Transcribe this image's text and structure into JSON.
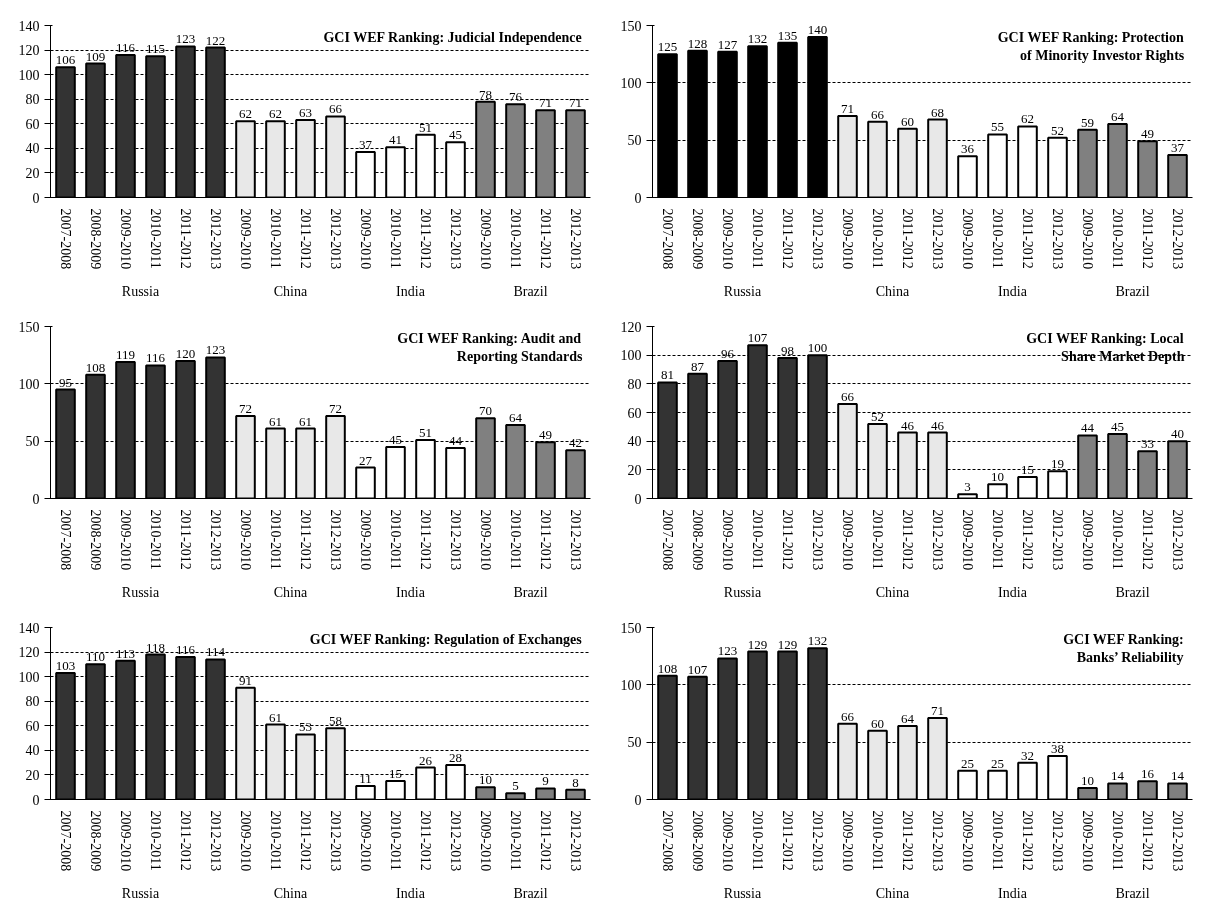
{
  "chart_data": [
    {
      "type": "bar",
      "title": "GCI WEF Ranking: Judicial Independence",
      "categories": [
        "2007-2008",
        "2008-2009",
        "2009-2010",
        "2010-2011",
        "2011-2012",
        "2012-2013",
        "2009-2010",
        "2010-2011",
        "2011-2012",
        "2012-2013",
        "2009-2010",
        "2010-2011",
        "2011-2012",
        "2012-2013",
        "2009-2010",
        "2010-2011",
        "2011-2012",
        "2012-2013"
      ],
      "series": [
        {
          "color": "#333333",
          "values": [
            106,
            109,
            116,
            115,
            123,
            122,
            null,
            null,
            null,
            null,
            null,
            null,
            null,
            null,
            null,
            null,
            null,
            null
          ]
        },
        {
          "color": "#e8e8e8",
          "values": [
            null,
            null,
            null,
            null,
            null,
            null,
            62,
            62,
            63,
            66,
            null,
            null,
            null,
            null,
            null,
            null,
            null,
            null
          ]
        },
        {
          "color": "#ffffff",
          "values": [
            null,
            null,
            null,
            null,
            null,
            null,
            null,
            null,
            null,
            null,
            37,
            41,
            51,
            45,
            null,
            null,
            null,
            null
          ]
        },
        {
          "color": "#808080",
          "values": [
            null,
            null,
            null,
            null,
            null,
            null,
            null,
            null,
            null,
            null,
            null,
            null,
            null,
            null,
            78,
            76,
            71,
            71
          ]
        }
      ],
      "ylim": [
        0,
        140
      ],
      "yticks": [
        0,
        20,
        40,
        60,
        80,
        100,
        120,
        140
      ],
      "grid": "y",
      "data_labels": true,
      "annotations": [
        "Russia",
        "China",
        "India",
        "Brazil"
      ]
    },
    {
      "type": "bar",
      "title": "GCI WEF Ranking: Protection\nof Minority Investor Rights",
      "categories": [
        "2007-2008",
        "2008-2009",
        "2009-2010",
        "2010-2011",
        "2011-2012",
        "2012-2013",
        "2009-2010",
        "2010-2011",
        "2011-2012",
        "2012-2013",
        "2009-2010",
        "2010-2011",
        "2011-2012",
        "2012-2013",
        "2009-2010",
        "2010-2011",
        "2011-2012",
        "2012-2013"
      ],
      "series": [
        {
          "color": "#000000",
          "values": [
            125,
            128,
            127,
            132,
            135,
            140,
            null,
            null,
            null,
            null,
            null,
            null,
            null,
            null,
            null,
            null,
            null,
            null
          ]
        },
        {
          "color": "#e8e8e8",
          "values": [
            null,
            null,
            null,
            null,
            null,
            null,
            71,
            66,
            60,
            68,
            null,
            null,
            null,
            null,
            null,
            null,
            null,
            null
          ]
        },
        {
          "color": "#ffffff",
          "values": [
            null,
            null,
            null,
            null,
            null,
            null,
            null,
            null,
            null,
            null,
            36,
            55,
            62,
            52,
            null,
            null,
            null,
            null
          ]
        },
        {
          "color": "#808080",
          "values": [
            null,
            null,
            null,
            null,
            null,
            null,
            null,
            null,
            null,
            null,
            null,
            null,
            null,
            null,
            59,
            64,
            49,
            37
          ]
        }
      ],
      "ylim": [
        0,
        150
      ],
      "yticks": [
        0,
        50,
        100,
        150
      ],
      "grid": "y",
      "data_labels": true,
      "annotations": [
        "Russia",
        "China",
        "India",
        "Brazil"
      ]
    },
    {
      "type": "bar",
      "title": "GCI WEF Ranking: Audit and\nReporting Standards",
      "categories": [
        "2007-2008",
        "2008-2009",
        "2009-2010",
        "2010-2011",
        "2011-2012",
        "2012-2013",
        "2009-2010",
        "2010-2011",
        "2011-2012",
        "2012-2013",
        "2009-2010",
        "2010-2011",
        "2011-2012",
        "2012-2013",
        "2009-2010",
        "2010-2011",
        "2011-2012",
        "2012-2013"
      ],
      "series": [
        {
          "color": "#333333",
          "values": [
            95,
            108,
            119,
            116,
            120,
            123,
            null,
            null,
            null,
            null,
            null,
            null,
            null,
            null,
            null,
            null,
            null,
            null
          ]
        },
        {
          "color": "#e8e8e8",
          "values": [
            null,
            null,
            null,
            null,
            null,
            null,
            72,
            61,
            61,
            72,
            null,
            null,
            null,
            null,
            null,
            null,
            null,
            null
          ]
        },
        {
          "color": "#ffffff",
          "values": [
            null,
            null,
            null,
            null,
            null,
            null,
            null,
            null,
            null,
            null,
            27,
            45,
            51,
            44,
            null,
            null,
            null,
            null
          ]
        },
        {
          "color": "#808080",
          "values": [
            null,
            null,
            null,
            null,
            null,
            null,
            null,
            null,
            null,
            null,
            null,
            null,
            null,
            null,
            70,
            64,
            49,
            42
          ]
        }
      ],
      "ylim": [
        0,
        150
      ],
      "yticks": [
        0,
        50,
        100,
        150
      ],
      "grid": "y",
      "data_labels": true,
      "annotations": [
        "Russia",
        "China",
        "India",
        "Brazil"
      ]
    },
    {
      "type": "bar",
      "title": "GCI WEF Ranking: Local\nShare Market Depth",
      "categories": [
        "2007-2008",
        "2008-2009",
        "2009-2010",
        "2010-2011",
        "2011-2012",
        "2012-2013",
        "2009-2010",
        "2010-2011",
        "2011-2012",
        "2012-2013",
        "2009-2010",
        "2010-2011",
        "2011-2012",
        "2012-2013",
        "2009-2010",
        "2010-2011",
        "2011-2012",
        "2012-2013"
      ],
      "series": [
        {
          "color": "#333333",
          "values": [
            81,
            87,
            96,
            107,
            98,
            100,
            null,
            null,
            null,
            null,
            null,
            null,
            null,
            null,
            null,
            null,
            null,
            null
          ]
        },
        {
          "color": "#e8e8e8",
          "values": [
            null,
            null,
            null,
            null,
            null,
            null,
            66,
            52,
            46,
            46,
            null,
            null,
            null,
            null,
            null,
            null,
            null,
            null
          ]
        },
        {
          "color": "#ffffff",
          "values": [
            null,
            null,
            null,
            null,
            null,
            null,
            null,
            null,
            null,
            null,
            3,
            10,
            15,
            19,
            null,
            null,
            null,
            null
          ]
        },
        {
          "color": "#808080",
          "values": [
            null,
            null,
            null,
            null,
            null,
            null,
            null,
            null,
            null,
            null,
            null,
            null,
            null,
            null,
            44,
            45,
            33,
            40
          ]
        }
      ],
      "ylim": [
        0,
        120
      ],
      "yticks": [
        0,
        20,
        40,
        60,
        80,
        100,
        120
      ],
      "grid": "y",
      "data_labels": true,
      "annotations": [
        "Russia",
        "China",
        "India",
        "Brazil"
      ]
    },
    {
      "type": "bar",
      "title": "GCI WEF Ranking: Regulation of Exchanges",
      "categories": [
        "2007-2008",
        "2008-2009",
        "2009-2010",
        "2010-2011",
        "2011-2012",
        "2012-2013",
        "2009-2010",
        "2010-2011",
        "2011-2012",
        "2012-2013",
        "2009-2010",
        "2010-2011",
        "2011-2012",
        "2012-2013",
        "2009-2010",
        "2010-2011",
        "2011-2012",
        "2012-2013"
      ],
      "series": [
        {
          "color": "#333333",
          "values": [
            103,
            110,
            113,
            118,
            116,
            114,
            null,
            null,
            null,
            null,
            null,
            null,
            null,
            null,
            null,
            null,
            null,
            null
          ]
        },
        {
          "color": "#e8e8e8",
          "values": [
            null,
            null,
            null,
            null,
            null,
            null,
            91,
            61,
            53,
            58,
            null,
            null,
            null,
            null,
            null,
            null,
            null,
            null
          ]
        },
        {
          "color": "#ffffff",
          "values": [
            null,
            null,
            null,
            null,
            null,
            null,
            null,
            null,
            null,
            null,
            11,
            15,
            26,
            28,
            null,
            null,
            null,
            null
          ]
        },
        {
          "color": "#808080",
          "values": [
            null,
            null,
            null,
            null,
            null,
            null,
            null,
            null,
            null,
            null,
            null,
            null,
            null,
            null,
            10,
            5,
            9,
            8
          ]
        }
      ],
      "ylim": [
        0,
        140
      ],
      "yticks": [
        0,
        20,
        40,
        60,
        80,
        100,
        120,
        140
      ],
      "grid": "y",
      "data_labels": true,
      "annotations": [
        "Russia",
        "China",
        "India",
        "Brazil"
      ]
    },
    {
      "type": "bar",
      "title": "GCI WEF Ranking:\nBanks’ Reliability",
      "categories": [
        "2007-2008",
        "2008-2009",
        "2009-2010",
        "2010-2011",
        "2011-2012",
        "2012-2013",
        "2009-2010",
        "2010-2011",
        "2011-2012",
        "2012-2013",
        "2009-2010",
        "2010-2011",
        "2011-2012",
        "2012-2013",
        "2009-2010",
        "2010-2011",
        "2011-2012",
        "2012-2013"
      ],
      "series": [
        {
          "color": "#333333",
          "values": [
            108,
            107,
            123,
            129,
            129,
            132,
            null,
            null,
            null,
            null,
            null,
            null,
            null,
            null,
            null,
            null,
            null,
            null
          ]
        },
        {
          "color": "#e8e8e8",
          "values": [
            null,
            null,
            null,
            null,
            null,
            null,
            66,
            60,
            64,
            71,
            null,
            null,
            null,
            null,
            null,
            null,
            null,
            null
          ]
        },
        {
          "color": "#ffffff",
          "values": [
            null,
            null,
            null,
            null,
            null,
            null,
            null,
            null,
            null,
            null,
            25,
            25,
            32,
            38,
            null,
            null,
            null,
            null
          ]
        },
        {
          "color": "#808080",
          "values": [
            null,
            null,
            null,
            null,
            null,
            null,
            null,
            null,
            null,
            null,
            null,
            null,
            null,
            null,
            10,
            14,
            16,
            14
          ]
        }
      ],
      "ylim": [
        0,
        150
      ],
      "yticks": [
        0,
        50,
        100,
        150
      ],
      "grid": "y",
      "data_labels": true,
      "annotations": [
        "Russia",
        "China",
        "India",
        "Brazil"
      ]
    }
  ]
}
